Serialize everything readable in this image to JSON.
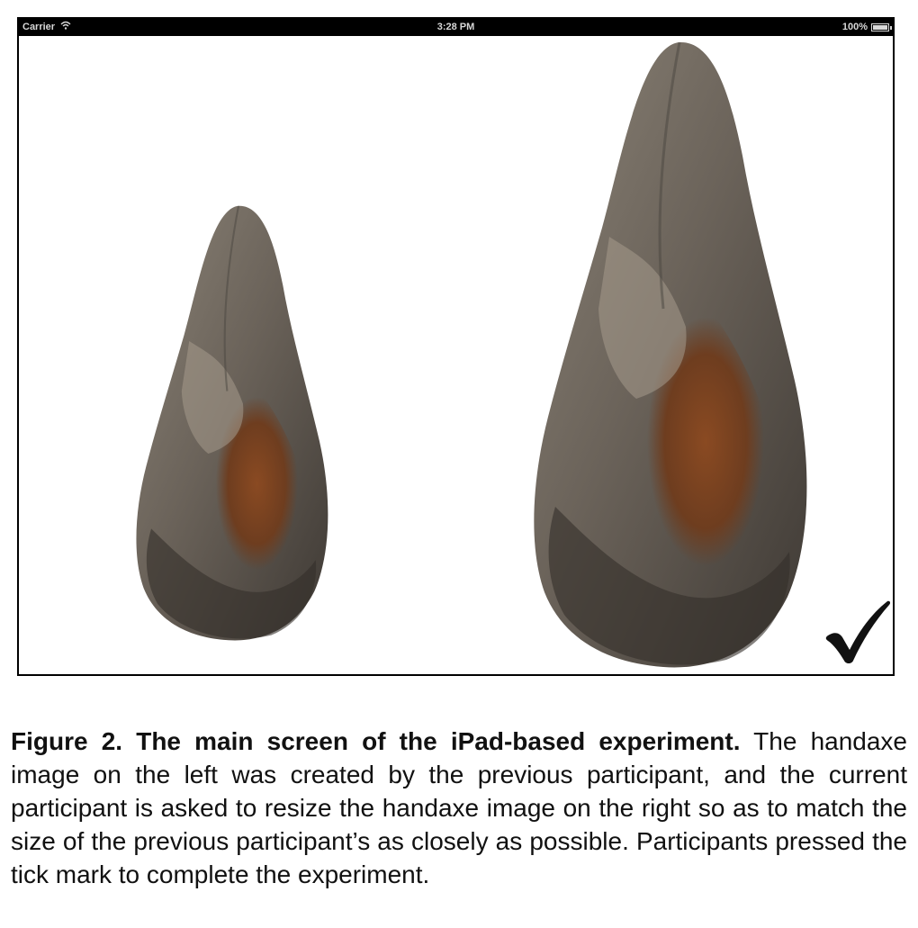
{
  "status_bar": {
    "carrier": "Carrier",
    "time": "3:28 PM",
    "battery": "100%",
    "wifi_icon": "wifi-icon",
    "battery_icon": "battery-icon"
  },
  "screen": {
    "left_image": "handaxe-previous-participant",
    "right_image": "handaxe-current-participant",
    "tick_icon": "checkmark-icon"
  },
  "caption": {
    "label": "Figure 2. The main screen of the iPad-based experiment.",
    "text": " The handaxe image on the left was created by the previous participant, and the current participant is asked to resize the handaxe image on the right so as to match the size of the previous participant’s as closely as possible. Participants pressed the tick mark to complete the experiment."
  },
  "colors": {
    "status_bar_bg": "#000000",
    "stone_dark": "#4a4540",
    "stone_mid": "#7a736a",
    "stone_light": "#a59a8c",
    "stone_rust": "#8a4a22"
  }
}
